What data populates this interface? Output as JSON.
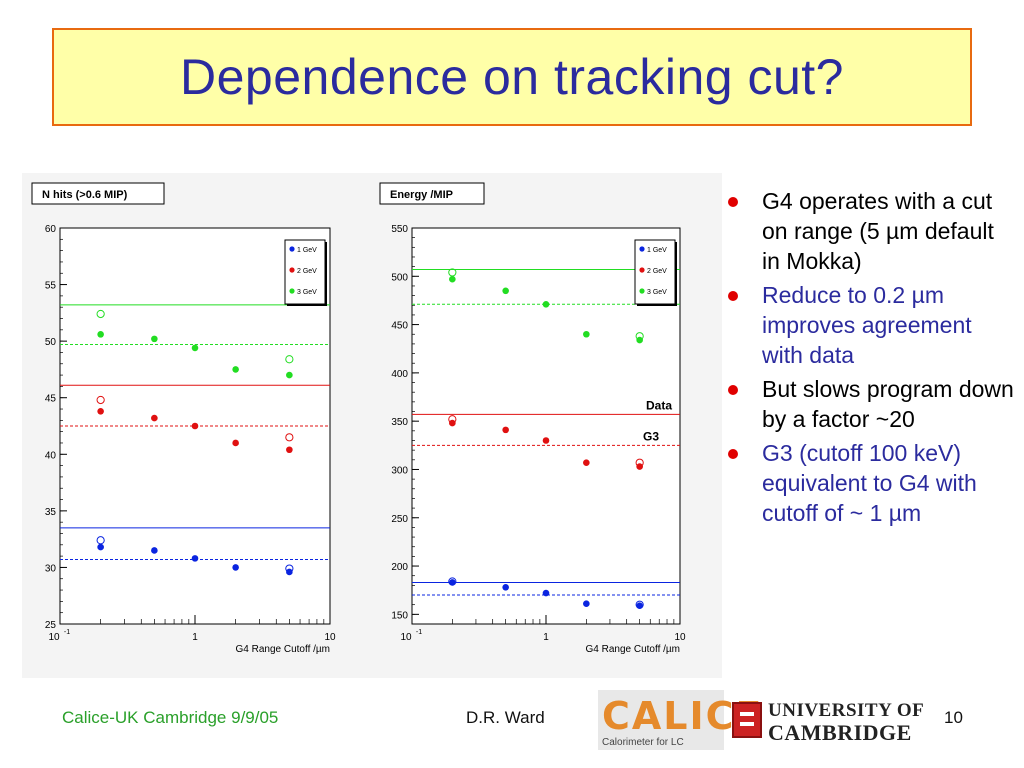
{
  "title": "Dependence on tracking cut?",
  "bullets": [
    {
      "text": "G4 operates with a cut on range (5 µm default in Mokka)",
      "color": "#000000"
    },
    {
      "text": "Reduce to 0.2 µm improves agreement with data",
      "color": "#2b2b9e"
    },
    {
      "text": "But slows program down by a factor ~20",
      "color": "#000000"
    },
    {
      "text": "G3 (cutoff 100 keV) equivalent to G4 with cutoff of ~ 1 µm",
      "color": "#2b2b9e"
    }
  ],
  "footer": {
    "left": "Calice-UK Cambridge 9/9/05",
    "author": "D.R. Ward",
    "page": "10"
  },
  "logos": {
    "calice_word": "CALICE",
    "calice_sub": "Calorimeter for LC",
    "cambridge_line1": "UNIVERSITY OF",
    "cambridge_line2": "CAMBRIDGE"
  },
  "colors": {
    "series_1gev": "#0a24e0",
    "series_2gev": "#e01010",
    "series_3gev": "#22dd22",
    "title": "#2b2b9e",
    "title_bg": "#ffffa8",
    "title_border": "#e86a10",
    "bullet_dot": "#e00000"
  },
  "chart_data": [
    {
      "type": "scatter",
      "title": "N hits (>0.6 MIP)",
      "xlabel": "G4 Range Cutoff /µm",
      "xscale": "log",
      "xlim": [
        0.1,
        10
      ],
      "x_tick_labels": [
        "10-1",
        "1",
        "10"
      ],
      "ylim": [
        25,
        60
      ],
      "y_ticks": [
        25,
        30,
        35,
        40,
        45,
        50,
        55,
        60
      ],
      "legend": {
        "position": "top-right",
        "entries": [
          "1 GeV",
          "2 GeV",
          "3 GeV"
        ]
      },
      "series": [
        {
          "name": "1 GeV",
          "color": "#0a24e0",
          "x": [
            0.2,
            0.5,
            1,
            2,
            5
          ],
          "y": [
            31.8,
            31.5,
            30.8,
            30.0,
            29.6
          ]
        },
        {
          "name": "2 GeV",
          "color": "#e01010",
          "x": [
            0.2,
            0.5,
            1,
            2,
            5
          ],
          "y": [
            43.8,
            43.2,
            42.5,
            41.0,
            40.4
          ]
        },
        {
          "name": "3 GeV",
          "color": "#22dd22",
          "x": [
            0.2,
            0.5,
            1,
            2,
            5
          ],
          "y": [
            50.6,
            50.2,
            49.4,
            47.5,
            47.0
          ]
        }
      ],
      "open_markers": [
        {
          "series": "1 GeV",
          "x": [
            0.2,
            5
          ],
          "y": [
            32.4,
            29.9
          ]
        },
        {
          "series": "2 GeV",
          "x": [
            0.2,
            5
          ],
          "y": [
            44.8,
            41.5
          ]
        },
        {
          "series": "3 GeV",
          "x": [
            0.2,
            5
          ],
          "y": [
            52.4,
            48.4
          ]
        }
      ],
      "reference_lines": [
        {
          "series": "1 GeV",
          "kind": "solid",
          "y": 33.5
        },
        {
          "series": "1 GeV",
          "kind": "dashed",
          "y": 30.7
        },
        {
          "series": "2 GeV",
          "kind": "solid",
          "y": 46.1
        },
        {
          "series": "2 GeV",
          "kind": "dashed",
          "y": 42.5
        },
        {
          "series": "3 GeV",
          "kind": "solid",
          "y": 53.2
        },
        {
          "series": "3 GeV",
          "kind": "dashed",
          "y": 49.7
        }
      ]
    },
    {
      "type": "scatter",
      "title": "Energy /MIP",
      "xlabel": "G4 Range Cutoff /µm",
      "xscale": "log",
      "xlim": [
        0.1,
        10
      ],
      "x_tick_labels": [
        "10-1",
        "1",
        "10"
      ],
      "ylim": [
        140,
        550
      ],
      "y_ticks": [
        150,
        200,
        250,
        300,
        350,
        400,
        450,
        500,
        550
      ],
      "legend": {
        "position": "top-right",
        "entries": [
          "1 GeV",
          "2 GeV",
          "3 GeV"
        ]
      },
      "line_labels": [
        "Data",
        "G3"
      ],
      "series": [
        {
          "name": "1 GeV",
          "color": "#0a24e0",
          "x": [
            0.2,
            0.5,
            1,
            2,
            5
          ],
          "y": [
            183,
            178,
            172,
            161,
            159
          ]
        },
        {
          "name": "2 GeV",
          "color": "#e01010",
          "x": [
            0.2,
            0.5,
            1,
            2,
            5
          ],
          "y": [
            348,
            341,
            330,
            307,
            303
          ]
        },
        {
          "name": "3 GeV",
          "color": "#22dd22",
          "x": [
            0.2,
            0.5,
            1,
            2,
            5
          ],
          "y": [
            497,
            485,
            471,
            440,
            434
          ]
        }
      ],
      "open_markers": [
        {
          "series": "1 GeV",
          "x": [
            0.2,
            5
          ],
          "y": [
            184,
            160
          ]
        },
        {
          "series": "2 GeV",
          "x": [
            0.2,
            5
          ],
          "y": [
            352,
            307
          ]
        },
        {
          "series": "3 GeV",
          "x": [
            0.2,
            5
          ],
          "y": [
            504,
            438
          ]
        }
      ],
      "reference_lines": [
        {
          "series": "1 GeV",
          "kind": "solid",
          "y": 183
        },
        {
          "series": "1 GeV",
          "kind": "dashed",
          "y": 170
        },
        {
          "series": "2 GeV",
          "kind": "solid",
          "y": 357
        },
        {
          "series": "2 GeV",
          "kind": "dashed",
          "y": 325
        },
        {
          "series": "3 GeV",
          "kind": "solid",
          "y": 507
        },
        {
          "series": "3 GeV",
          "kind": "dashed",
          "y": 471
        }
      ]
    }
  ]
}
